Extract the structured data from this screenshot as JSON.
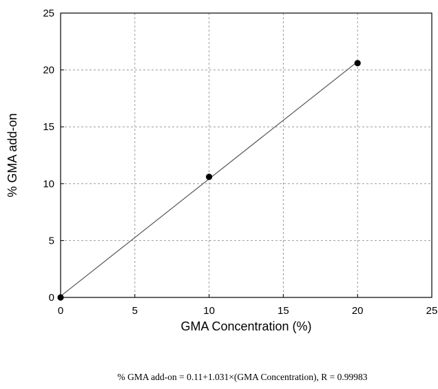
{
  "chart_data": {
    "type": "scatter",
    "xlabel": "GMA Concentration (%)",
    "ylabel": "% GMA add-on",
    "xlim": [
      0,
      25
    ],
    "ylim": [
      0,
      25
    ],
    "x_ticks": [
      0,
      5,
      10,
      15,
      20,
      25
    ],
    "y_ticks": [
      0,
      5,
      10,
      15,
      20,
      25
    ],
    "grid": true,
    "series": [
      {
        "x": [
          0,
          10,
          20
        ],
        "y": [
          0,
          10.6,
          20.6
        ]
      }
    ],
    "fit_line": {
      "intercept": 0.11,
      "slope": 1.031,
      "x_range": [
        0,
        20
      ]
    },
    "annotation": "% GMA add-on  =  0.11+1.031×(GMA Concentration), R = 0.99983"
  }
}
